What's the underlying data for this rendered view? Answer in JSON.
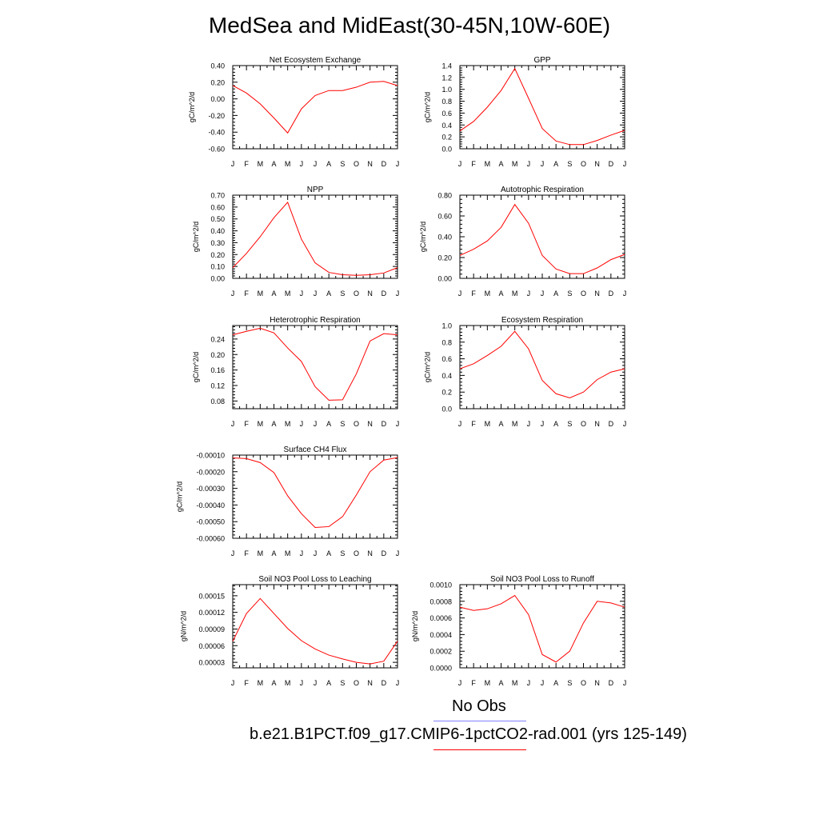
{
  "title": "MedSea and MidEast(30-45N,10W-60E)",
  "months": [
    "J",
    "F",
    "M",
    "A",
    "M",
    "J",
    "J",
    "A",
    "S",
    "O",
    "N",
    "D",
    "J"
  ],
  "colors": {
    "model_line": "#ff0000",
    "obs_line": "#8080ff"
  },
  "legend": {
    "obs_label": "No Obs",
    "model_label": "b.e21.B1PCT.f09_g17.CMIP6-1pctCO2-rad.001 (yrs 125-149)"
  },
  "chart_data": [
    {
      "type": "line",
      "title": "Net Ecosystem Exchange",
      "ylabel": "gC/m^2/d",
      "ylim": [
        -0.6,
        0.4
      ],
      "yticks": [
        "-0.60",
        "-0.40",
        "-0.20",
        "0.00",
        "0.20",
        "0.40"
      ],
      "ytick_values": [
        -0.6,
        -0.4,
        -0.2,
        0,
        0.2,
        0.4
      ],
      "values": [
        0.16,
        0.07,
        -0.06,
        -0.23,
        -0.41,
        -0.12,
        0.04,
        0.1,
        0.1,
        0.14,
        0.2,
        0.21,
        0.16
      ]
    },
    {
      "type": "line",
      "title": "GPP",
      "ylabel": "gC/m^2/d",
      "ylim": [
        0,
        1.4
      ],
      "yticks": [
        "0.0",
        "0.2",
        "0.4",
        "0.6",
        "0.8",
        "1.0",
        "1.2",
        "1.4"
      ],
      "ytick_values": [
        0,
        0.2,
        0.4,
        0.6,
        0.8,
        1.0,
        1.2,
        1.4
      ],
      "values": [
        0.3,
        0.46,
        0.7,
        0.98,
        1.35,
        0.85,
        0.34,
        0.13,
        0.07,
        0.07,
        0.14,
        0.23,
        0.31
      ]
    },
    {
      "type": "line",
      "title": "NPP",
      "ylabel": "gC/m^2/d",
      "ylim": [
        0,
        0.7
      ],
      "yticks": [
        "0.00",
        "0.10",
        "0.20",
        "0.30",
        "0.40",
        "0.50",
        "0.60",
        "0.70"
      ],
      "ytick_values": [
        0,
        0.1,
        0.2,
        0.3,
        0.4,
        0.5,
        0.6,
        0.7
      ],
      "values": [
        0.09,
        0.21,
        0.35,
        0.51,
        0.64,
        0.33,
        0.13,
        0.05,
        0.03,
        0.025,
        0.03,
        0.045,
        0.09
      ]
    },
    {
      "type": "line",
      "title": "Autotrophic Respiration",
      "ylabel": "gC/m^2/d",
      "ylim": [
        0,
        0.8
      ],
      "yticks": [
        "0.00",
        "0.20",
        "0.40",
        "0.60",
        "0.80"
      ],
      "ytick_values": [
        0,
        0.2,
        0.4,
        0.6,
        0.8
      ],
      "values": [
        0.22,
        0.28,
        0.36,
        0.49,
        0.71,
        0.53,
        0.22,
        0.09,
        0.045,
        0.045,
        0.1,
        0.18,
        0.23
      ]
    },
    {
      "type": "line",
      "title": "Heterotrophic Respiration",
      "ylabel": "gC/m^2/d",
      "ylim": [
        0.06,
        0.275
      ],
      "yticks": [
        "0.08",
        "0.12",
        "0.16",
        "0.20",
        "0.24"
      ],
      "ytick_values": [
        0.08,
        0.12,
        0.16,
        0.2,
        0.24
      ],
      "values": [
        0.251,
        0.26,
        0.268,
        0.256,
        0.217,
        0.182,
        0.117,
        0.082,
        0.083,
        0.15,
        0.235,
        0.254,
        0.251
      ]
    },
    {
      "type": "line",
      "title": "Ecosystem Respiration",
      "ylabel": "gC/m^2/d",
      "ylim": [
        0,
        1.0
      ],
      "yticks": [
        "0.0",
        "0.2",
        "0.4",
        "0.6",
        "0.8",
        "1.0"
      ],
      "ytick_values": [
        0,
        0.2,
        0.4,
        0.6,
        0.8,
        1.0
      ],
      "values": [
        0.48,
        0.54,
        0.64,
        0.75,
        0.93,
        0.72,
        0.34,
        0.18,
        0.13,
        0.2,
        0.35,
        0.44,
        0.48
      ]
    },
    {
      "type": "line",
      "title": "Surface CH4 Flux",
      "ylabel": "gC/m^2/d",
      "ylim": [
        -0.0006,
        -0.0001
      ],
      "yticks": [
        "-0.00060",
        "-0.00050",
        "-0.00040",
        "-0.00030",
        "-0.00020",
        "-0.00010"
      ],
      "ytick_values": [
        -0.0006,
        -0.0005,
        -0.0004,
        -0.0003,
        -0.0002,
        -0.0001
      ],
      "values": [
        -0.000117,
        -0.000121,
        -0.000145,
        -0.000205,
        -0.000345,
        -0.000452,
        -0.000535,
        -0.00053,
        -0.00047,
        -0.00034,
        -0.0002,
        -0.00013,
        -0.000115
      ]
    },
    {
      "type": "line",
      "title": "Soil NO3 Pool Loss to Leaching",
      "ylabel": "gN/m^2/d",
      "ylim": [
        2e-05,
        0.00017
      ],
      "yticks": [
        "0.00003",
        "0.00006",
        "0.00009",
        "0.00012",
        "0.00015"
      ],
      "ytick_values": [
        3e-05,
        6e-05,
        9e-05,
        0.00012,
        0.00015
      ],
      "values": [
        6.8e-05,
        0.000118,
        0.000145,
        0.000118,
        9.1e-05,
        6.9e-05,
        5.4e-05,
        4.3e-05,
        3.6e-05,
        3e-05,
        2.7e-05,
        3.2e-05,
        6.8e-05
      ]
    },
    {
      "type": "line",
      "title": "Soil NO3 Pool Loss to Runoff",
      "ylabel": "gN/m^2/d",
      "ylim": [
        0,
        0.001
      ],
      "yticks": [
        "0.0000",
        "0.0002",
        "0.0004",
        "0.0006",
        "0.0008",
        "0.0010"
      ],
      "ytick_values": [
        0,
        0.0002,
        0.0004,
        0.0006,
        0.0008,
        0.001
      ],
      "values": [
        0.00073,
        0.00069,
        0.00071,
        0.00077,
        0.00087,
        0.00064,
        0.00016,
        7e-05,
        0.0002,
        0.00054,
        0.0008,
        0.00078,
        0.00073
      ]
    }
  ]
}
